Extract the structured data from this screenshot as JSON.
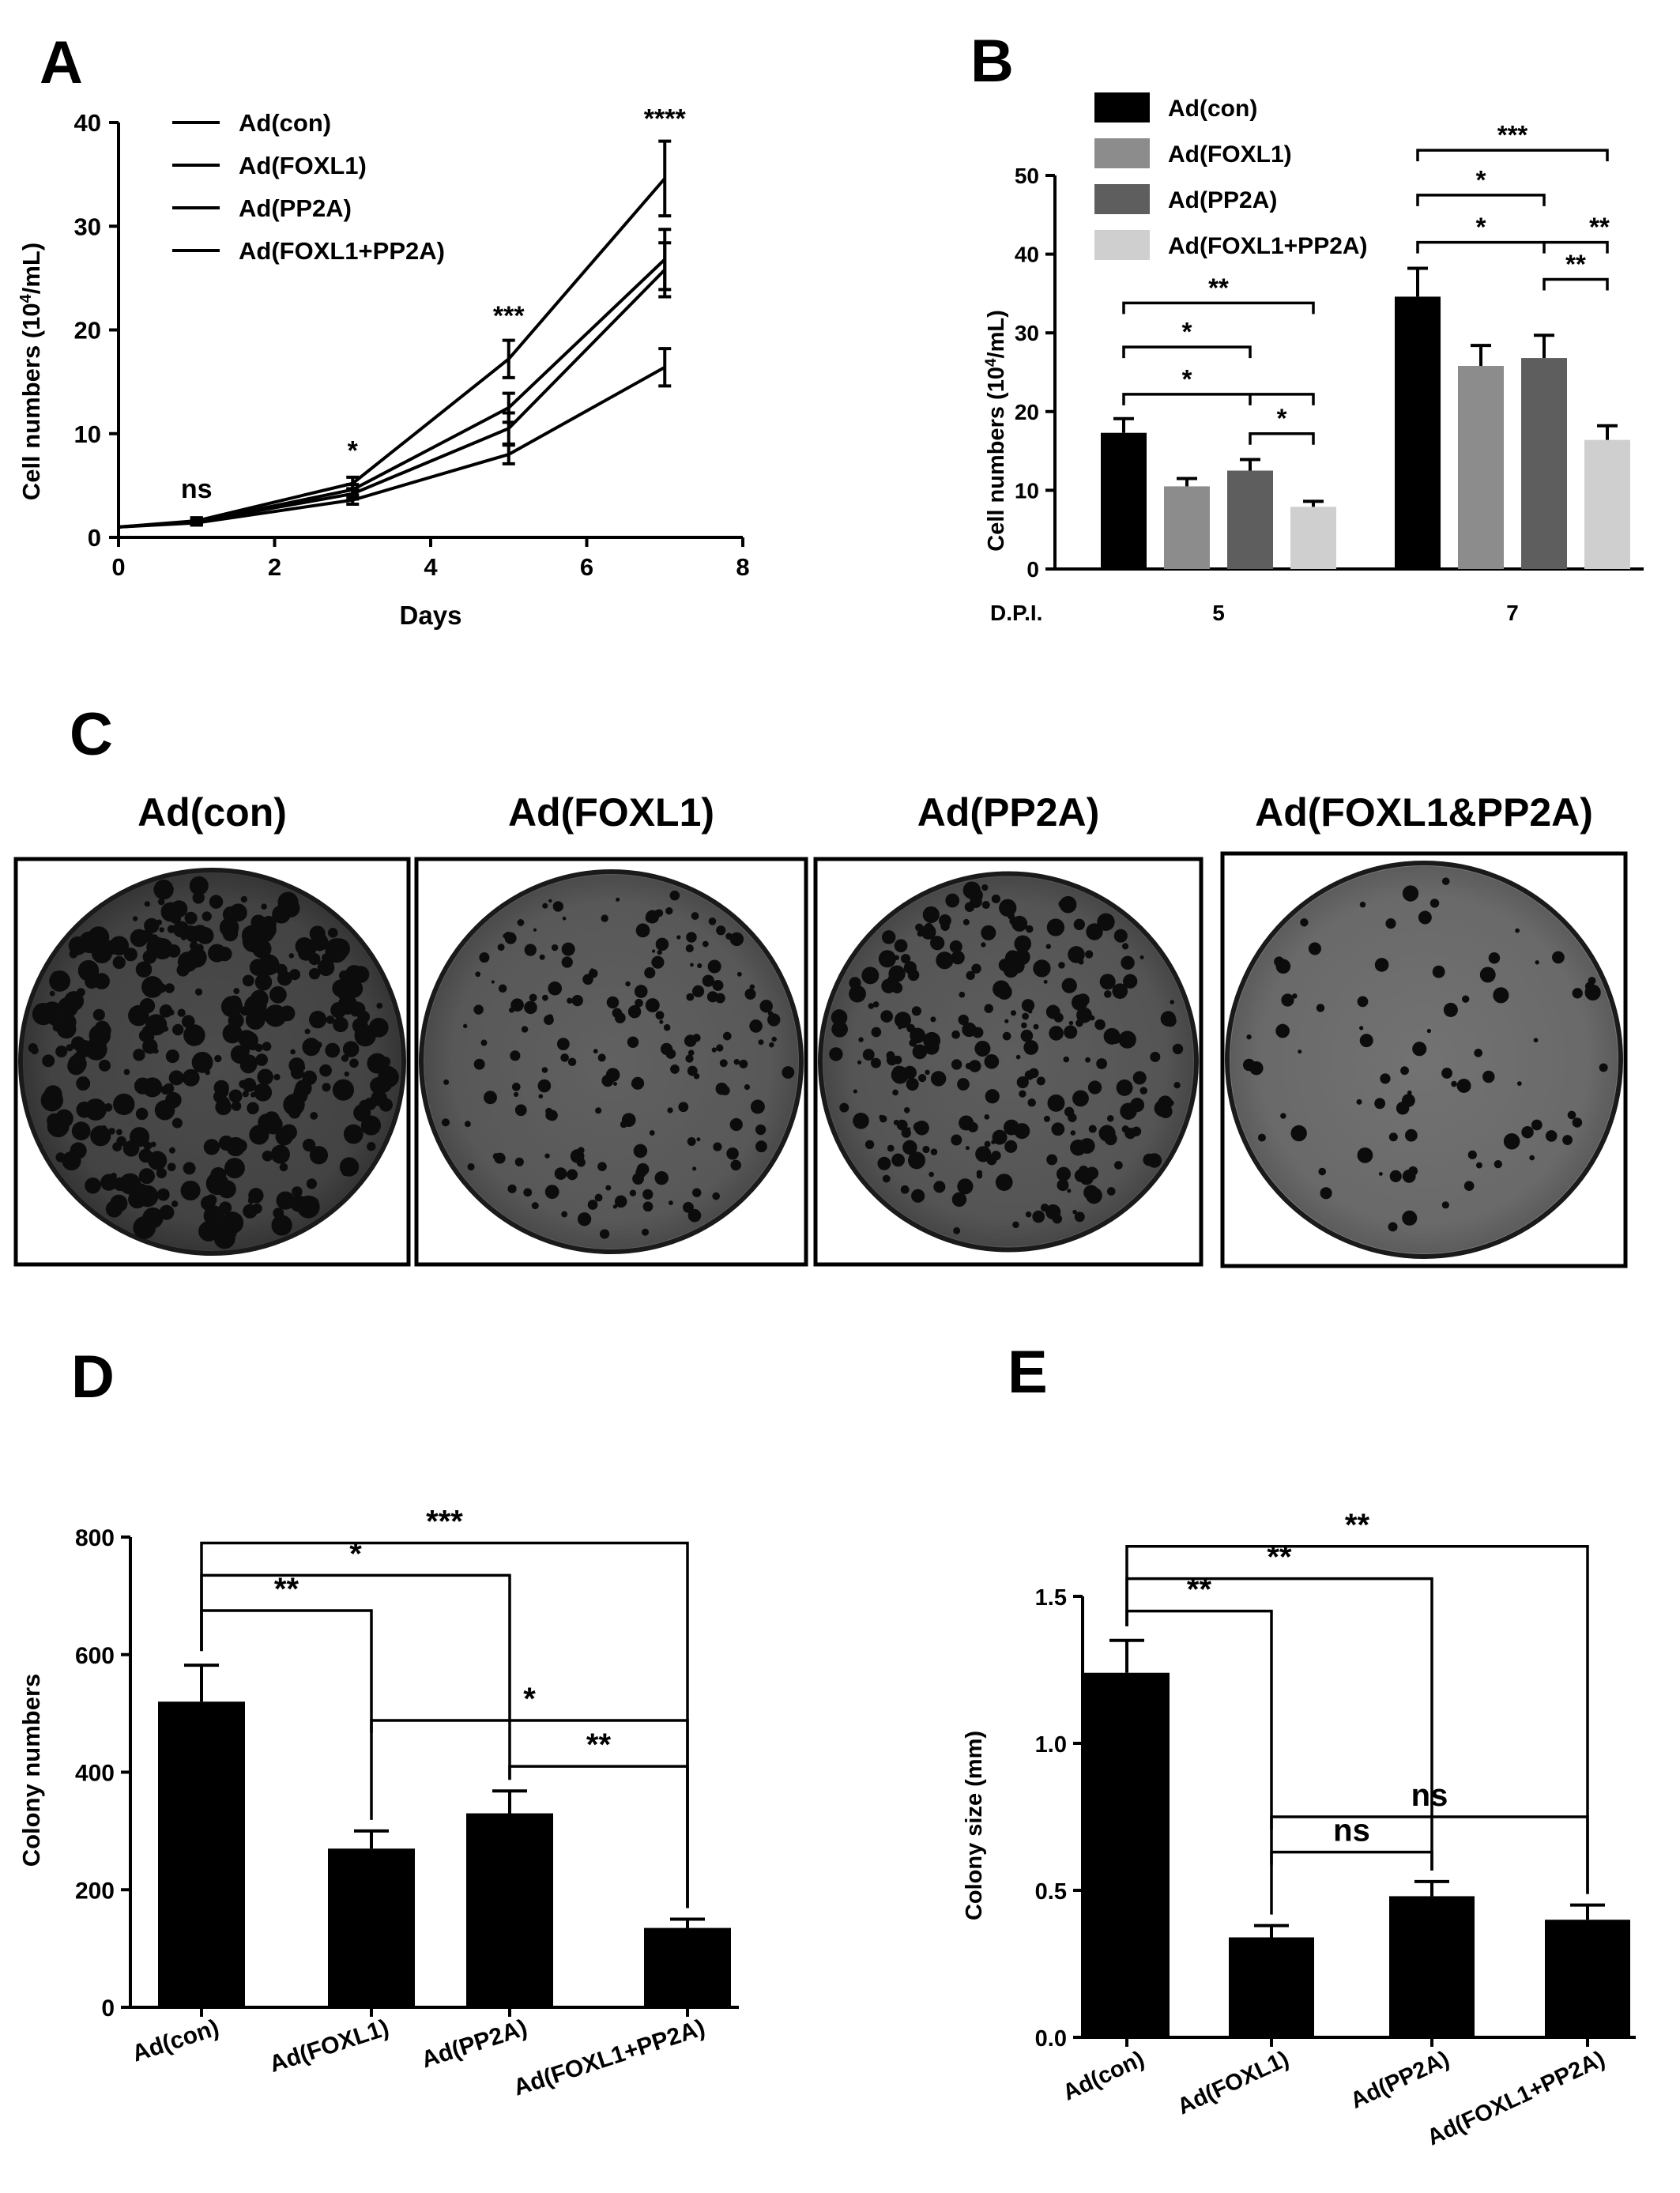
{
  "chart_data": [
    {
      "id": "A",
      "type": "line",
      "panel_label": "A",
      "xlabel": "Days",
      "ylabel_main": "Cell numbers (10",
      "ylabel_sup": "4",
      "ylabel_tail": "/mL)",
      "xlim": [
        0,
        8
      ],
      "ylim": [
        0,
        40
      ],
      "xticks": [
        "0",
        "2",
        "4",
        "6",
        "8"
      ],
      "yticks": [
        "0",
        "10",
        "20",
        "30",
        "40"
      ],
      "legend_position": "top-left",
      "x": [
        0,
        1,
        3,
        5,
        7
      ],
      "series": [
        {
          "name": "Ad(con)",
          "values": [
            1.0,
            1.6,
            5.2,
            17.2,
            34.6
          ],
          "errors": [
            0,
            0.3,
            0.6,
            1.8,
            3.6
          ]
        },
        {
          "name": "Ad(FOXL1)",
          "values": [
            1.0,
            1.5,
            4.2,
            10.5,
            25.8
          ],
          "errors": [
            0,
            0.3,
            0.5,
            1.5,
            2.6
          ]
        },
        {
          "name": "Ad(PP2A)",
          "values": [
            1.0,
            1.5,
            4.6,
            12.5,
            26.8
          ],
          "errors": [
            0,
            0.3,
            0.5,
            1.4,
            2.9
          ]
        },
        {
          "name": "Ad(FOXL1+PP2A)",
          "values": [
            1.0,
            1.4,
            3.6,
            8.0,
            16.4
          ],
          "errors": [
            0,
            0.2,
            0.4,
            0.9,
            1.8
          ]
        }
      ],
      "annotations": [
        {
          "x": 1,
          "y": 3.8,
          "text": "ns"
        },
        {
          "x": 3,
          "y": 7.5,
          "text": "*"
        },
        {
          "x": 5,
          "y": 20.5,
          "text": "***"
        },
        {
          "x": 7,
          "y": 39.5,
          "text": "****"
        }
      ]
    },
    {
      "id": "B",
      "type": "bar",
      "panel_label": "B",
      "ylabel_main": "Cell numbers (10",
      "ylabel_sup": "4",
      "ylabel_tail": "/mL)",
      "xprefix": "D.P.I.",
      "categories": [
        "5",
        "7"
      ],
      "ylim": [
        0,
        50
      ],
      "yticks": [
        "0",
        "10",
        "20",
        "30",
        "40",
        "50"
      ],
      "legend_position": "top",
      "series": [
        {
          "name": "Ad(con)",
          "color": "#000000",
          "values": [
            17.3,
            34.6
          ],
          "errors": [
            1.8,
            3.6
          ]
        },
        {
          "name": "Ad(FOXL1)",
          "color": "#8c8c8c",
          "values": [
            10.5,
            25.8
          ],
          "errors": [
            1.0,
            2.6
          ]
        },
        {
          "name": "Ad(PP2A)",
          "color": "#5e5e5e",
          "values": [
            12.5,
            26.8
          ],
          "errors": [
            1.4,
            2.9
          ]
        },
        {
          "name": "Ad(FOXL1+PP2A)",
          "color": "#cfcfcf",
          "values": [
            7.9,
            16.4
          ],
          "errors": [
            0.7,
            1.8
          ]
        }
      ],
      "significance": [
        {
          "group": 0,
          "from": 0,
          "to": 3,
          "y": 33.8,
          "text": "**"
        },
        {
          "group": 0,
          "from": 0,
          "to": 2,
          "y": 28.2,
          "text": "*"
        },
        {
          "group": 0,
          "from": 0,
          "to": "1-3",
          "y": 22.2,
          "text": "*"
        },
        {
          "group": 0,
          "from": 2,
          "to": 3,
          "y": 17.2,
          "text": "*"
        },
        {
          "group": 1,
          "from": 0,
          "to": 3,
          "y": 53.2,
          "text": "***"
        },
        {
          "group": 1,
          "from": 0,
          "to": 2,
          "y": 47.5,
          "text": "*"
        },
        {
          "group": 1,
          "from": 0,
          "to": "1-3",
          "y": 41.5,
          "text": "*",
          "text2": "**"
        },
        {
          "group": 1,
          "from": 2,
          "to": 3,
          "y": 36.8,
          "text": "**"
        }
      ]
    },
    {
      "id": "D",
      "type": "bar",
      "panel_label": "D",
      "ylabel": "Colony numbers",
      "categories": [
        "Ad(con)",
        "Ad(FOXL1)",
        "Ad(PP2A)",
        "Ad(FOXL1+PP2A)"
      ],
      "values": [
        520,
        270,
        330,
        135
      ],
      "errors": [
        62,
        30,
        38,
        15
      ],
      "ylim": [
        0,
        800
      ],
      "yticks": [
        "0",
        "200",
        "400",
        "600",
        "800"
      ],
      "significance": [
        {
          "from": 0,
          "to": 3,
          "y": 790,
          "text": "***"
        },
        {
          "from": 0,
          "to": 2,
          "y": 735,
          "text": "*"
        },
        {
          "from": 0,
          "to": 1,
          "y": 675,
          "text": "**"
        },
        {
          "from": 1,
          "to": 3,
          "y": 488,
          "text": "*"
        },
        {
          "from": 2,
          "to": 3,
          "y": 410,
          "text": "**"
        }
      ]
    },
    {
      "id": "E",
      "type": "bar",
      "panel_label": "E",
      "ylabel": "Colony size (mm)",
      "categories": [
        "Ad(con)",
        "Ad(FOXL1)",
        "Ad(PP2A)",
        "Ad(FOXL1+PP2A)"
      ],
      "values": [
        1.24,
        0.34,
        0.48,
        0.4
      ],
      "errors": [
        0.11,
        0.04,
        0.05,
        0.05
      ],
      "ylim": [
        0,
        1.5
      ],
      "yticks": [
        "0.0",
        "0.5",
        "1.0",
        "1.5"
      ],
      "significance": [
        {
          "from": 0,
          "to": 3,
          "y": 1.67,
          "text": "**"
        },
        {
          "from": 0,
          "to": 2,
          "y": 1.56,
          "text": "**"
        },
        {
          "from": 0,
          "to": 1,
          "y": 1.45,
          "text": "**"
        },
        {
          "from": 1,
          "to": 3,
          "y": 0.75,
          "text": "ns"
        },
        {
          "from": 1,
          "to": 2,
          "y": 0.63,
          "text": "ns"
        }
      ]
    }
  ],
  "panel_c": {
    "panel_label": "C",
    "plates": [
      {
        "label": "Ad(con)"
      },
      {
        "label": "Ad(FOXL1)"
      },
      {
        "label": "Ad(PP2A)"
      },
      {
        "label": "Ad(FOXL1&PP2A)"
      }
    ]
  }
}
